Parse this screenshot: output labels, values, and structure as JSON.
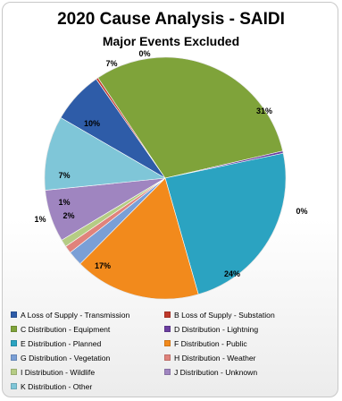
{
  "chart_data": {
    "type": "pie",
    "title": "2020 Cause Analysis - SAIDI",
    "subtitle": "Major Events Excluded",
    "legend_position": "bottom",
    "slices": [
      {
        "name": "A Loss of Supply - Transmission",
        "value": 7,
        "label": "7%",
        "color": "#2e5ca8"
      },
      {
        "name": "B Loss of Supply - Substation",
        "value": 0.3,
        "label": "0%",
        "color": "#c0392b"
      },
      {
        "name": "C Distribution - Equipment",
        "value": 31,
        "label": "31%",
        "color": "#7fa33a"
      },
      {
        "name": "D Distribution - Lightning",
        "value": 0.3,
        "label": "0%",
        "color": "#6b3fa0"
      },
      {
        "name": "E Distribution - Planned",
        "value": 24,
        "label": "24%",
        "color": "#2ba3c1"
      },
      {
        "name": "F Distribution - Public",
        "value": 17,
        "label": "17%",
        "color": "#f28a1c"
      },
      {
        "name": "G Distribution - Vegetation",
        "value": 2,
        "label": "2%",
        "color": "#7a9fd6"
      },
      {
        "name": "H Distribution - Weather",
        "value": 1,
        "label": "1%",
        "color": "#e0837c"
      },
      {
        "name": "I Distribution - Wildlife",
        "value": 1,
        "label": "1%",
        "color": "#b5cc84"
      },
      {
        "name": "J Distribution - Unknown",
        "value": 7,
        "label": "7%",
        "color": "#9f85c0"
      },
      {
        "name": "K Distribution - Other",
        "value": 10,
        "label": "10%",
        "color": "#7fc6d8"
      }
    ]
  }
}
